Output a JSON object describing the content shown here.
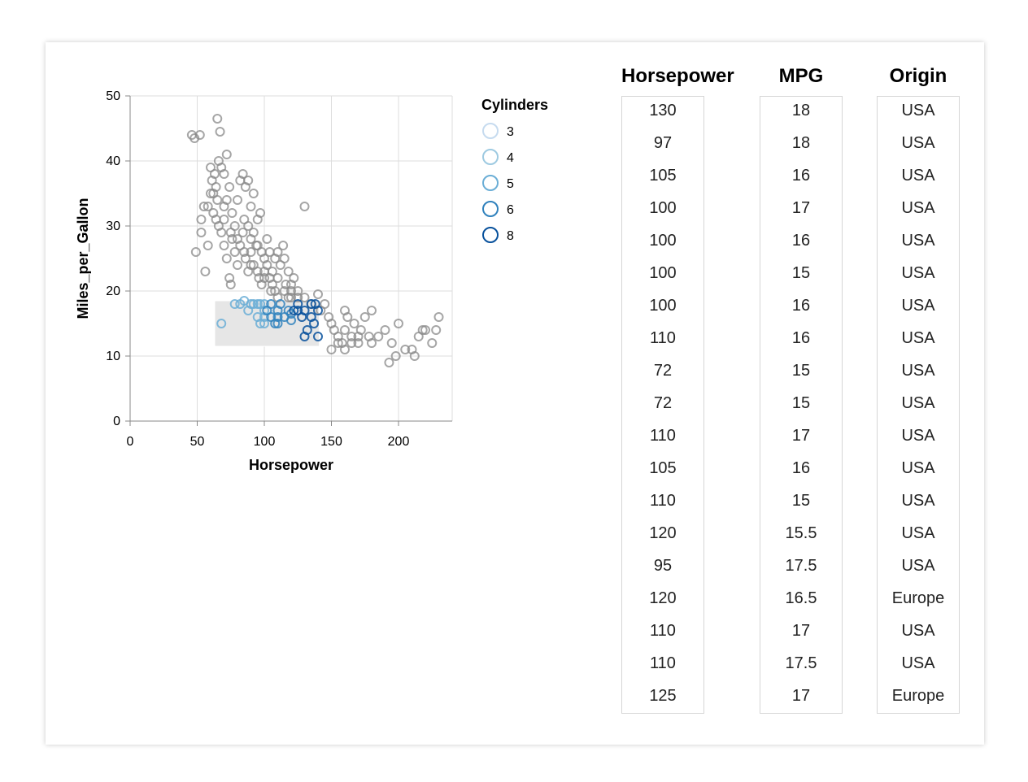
{
  "chart_data": {
    "type": "scatter",
    "xlabel": "Horsepower",
    "ylabel": "Miles_per_Gallon",
    "xlim": [
      0,
      240
    ],
    "ylim": [
      0,
      50
    ],
    "x_ticks": [
      0,
      50,
      100,
      150,
      200
    ],
    "y_ticks": [
      0,
      10,
      20,
      30,
      40,
      50
    ],
    "grid": true,
    "brush": {
      "x": [
        63,
        141
      ],
      "y": [
        11.5,
        18.5
      ]
    },
    "legend": {
      "title": "Cylinders",
      "placement": "right",
      "entries": [
        {
          "label": "3",
          "color": "#c6dbef"
        },
        {
          "label": "4",
          "color": "#9ecae1"
        },
        {
          "label": "5",
          "color": "#6baed6"
        },
        {
          "label": "6",
          "color": "#3182bd"
        },
        {
          "label": "8",
          "color": "#08519c"
        }
      ]
    },
    "unselected_color": "#888888",
    "points": [
      [
        46,
        44
      ],
      [
        48,
        43.5
      ],
      [
        52,
        44
      ],
      [
        65,
        46.5
      ],
      [
        67,
        44.5
      ],
      [
        49,
        26
      ],
      [
        53,
        29
      ],
      [
        53,
        31
      ],
      [
        55,
        33
      ],
      [
        56,
        23
      ],
      [
        58,
        27
      ],
      [
        60,
        39
      ],
      [
        61,
        37
      ],
      [
        62,
        35
      ],
      [
        63,
        38
      ],
      [
        64,
        36
      ],
      [
        66,
        40
      ],
      [
        68,
        39
      ],
      [
        70,
        38
      ],
      [
        72,
        41
      ],
      [
        62,
        32
      ],
      [
        64,
        31
      ],
      [
        66,
        30
      ],
      [
        68,
        29
      ],
      [
        70,
        33
      ],
      [
        72,
        34
      ],
      [
        74,
        36
      ],
      [
        76,
        32
      ],
      [
        78,
        30
      ],
      [
        80,
        34
      ],
      [
        82,
        37
      ],
      [
        84,
        38
      ],
      [
        86,
        36
      ],
      [
        88,
        37
      ],
      [
        90,
        33
      ],
      [
        92,
        35
      ],
      [
        95,
        31
      ],
      [
        97,
        32
      ],
      [
        70,
        27
      ],
      [
        72,
        25
      ],
      [
        74,
        22
      ],
      [
        75,
        21
      ],
      [
        76,
        28
      ],
      [
        78,
        26
      ],
      [
        80,
        24
      ],
      [
        82,
        27
      ],
      [
        84,
        29
      ],
      [
        86,
        25
      ],
      [
        88,
        23
      ],
      [
        90,
        26
      ],
      [
        92,
        24
      ],
      [
        94,
        27
      ],
      [
        96,
        22
      ],
      [
        98,
        21
      ],
      [
        100,
        25
      ],
      [
        102,
        28
      ],
      [
        104,
        26
      ],
      [
        106,
        23
      ],
      [
        108,
        20
      ],
      [
        110,
        22
      ],
      [
        112,
        24
      ],
      [
        114,
        27
      ],
      [
        116,
        21
      ],
      [
        118,
        19
      ],
      [
        120,
        20
      ],
      [
        122,
        22
      ],
      [
        125,
        19
      ],
      [
        130,
        33
      ],
      [
        135,
        18
      ],
      [
        140,
        19.5
      ],
      [
        142,
        17
      ],
      [
        145,
        18
      ],
      [
        148,
        16
      ],
      [
        150,
        15
      ],
      [
        152,
        14
      ],
      [
        155,
        13
      ],
      [
        158,
        12
      ],
      [
        160,
        14
      ],
      [
        162,
        16
      ],
      [
        165,
        13
      ],
      [
        167,
        15
      ],
      [
        170,
        12
      ],
      [
        172,
        14
      ],
      [
        175,
        16
      ],
      [
        178,
        13
      ],
      [
        180,
        12
      ],
      [
        185,
        13
      ],
      [
        190,
        14
      ],
      [
        193,
        9
      ],
      [
        195,
        12
      ],
      [
        198,
        10
      ],
      [
        200,
        15
      ],
      [
        205,
        11
      ],
      [
        210,
        11
      ],
      [
        212,
        10
      ],
      [
        215,
        13
      ],
      [
        218,
        14
      ],
      [
        220,
        14
      ],
      [
        225,
        12
      ],
      [
        228,
        14
      ],
      [
        230,
        16
      ],
      [
        150,
        11
      ],
      [
        155,
        12
      ],
      [
        160,
        11
      ],
      [
        165,
        12
      ],
      [
        170,
        13
      ],
      [
        180,
        17
      ],
      [
        160,
        17
      ],
      [
        85,
        31
      ],
      [
        88,
        30
      ],
      [
        90,
        28
      ],
      [
        92,
        29
      ],
      [
        95,
        27
      ],
      [
        98,
        26
      ],
      [
        100,
        23
      ],
      [
        102,
        24
      ],
      [
        104,
        22
      ],
      [
        106,
        21
      ],
      [
        108,
        25
      ],
      [
        110,
        26
      ],
      [
        115,
        25
      ],
      [
        118,
        23
      ],
      [
        120,
        21
      ],
      [
        58,
        33
      ],
      [
        60,
        35
      ],
      [
        65,
        34
      ],
      [
        70,
        31
      ],
      [
        75,
        29
      ],
      [
        80,
        28
      ],
      [
        85,
        26
      ],
      [
        90,
        24
      ],
      [
        95,
        23
      ],
      [
        100,
        22
      ],
      [
        105,
        20
      ],
      [
        110,
        19
      ],
      [
        115,
        20
      ],
      [
        120,
        19
      ],
      [
        125,
        20
      ],
      [
        130,
        19
      ]
    ],
    "selected_points": [
      [
        68,
        15
      ],
      [
        78,
        18
      ],
      [
        82,
        18
      ],
      [
        85,
        18.5
      ],
      [
        88,
        17
      ],
      [
        90,
        18
      ],
      [
        92,
        18
      ],
      [
        95,
        18
      ],
      [
        95,
        16
      ],
      [
        97,
        15
      ],
      [
        97,
        18
      ],
      [
        100,
        18
      ],
      [
        100,
        16
      ],
      [
        100,
        17
      ],
      [
        100,
        15
      ],
      [
        102,
        17
      ],
      [
        105,
        16
      ],
      [
        105,
        18
      ],
      [
        108,
        15
      ],
      [
        110,
        16
      ],
      [
        110,
        17
      ],
      [
        110,
        15
      ],
      [
        112,
        18
      ],
      [
        115,
        16
      ],
      [
        118,
        17
      ],
      [
        120,
        15.5
      ],
      [
        120,
        16.5
      ],
      [
        122,
        17
      ],
      [
        125,
        17
      ],
      [
        125,
        18
      ],
      [
        128,
        16
      ],
      [
        130,
        13
      ],
      [
        130,
        17
      ],
      [
        132,
        14
      ],
      [
        135,
        16
      ],
      [
        135,
        18
      ],
      [
        137,
        15
      ],
      [
        140,
        17
      ],
      [
        140,
        13
      ],
      [
        138,
        18
      ]
    ],
    "table": {
      "columns": [
        "Horsepower",
        "MPG",
        "Origin"
      ],
      "rows": [
        [
          "130",
          "18",
          "USA"
        ],
        [
          "97",
          "18",
          "USA"
        ],
        [
          "105",
          "16",
          "USA"
        ],
        [
          "100",
          "17",
          "USA"
        ],
        [
          "100",
          "16",
          "USA"
        ],
        [
          "100",
          "15",
          "USA"
        ],
        [
          "100",
          "16",
          "USA"
        ],
        [
          "110",
          "16",
          "USA"
        ],
        [
          "72",
          "15",
          "USA"
        ],
        [
          "72",
          "15",
          "USA"
        ],
        [
          "110",
          "17",
          "USA"
        ],
        [
          "105",
          "16",
          "USA"
        ],
        [
          "110",
          "15",
          "USA"
        ],
        [
          "120",
          "15.5",
          "USA"
        ],
        [
          "95",
          "17.5",
          "USA"
        ],
        [
          "120",
          "16.5",
          "Europe"
        ],
        [
          "110",
          "17",
          "USA"
        ],
        [
          "110",
          "17.5",
          "USA"
        ],
        [
          "125",
          "17",
          "Europe"
        ]
      ]
    }
  }
}
